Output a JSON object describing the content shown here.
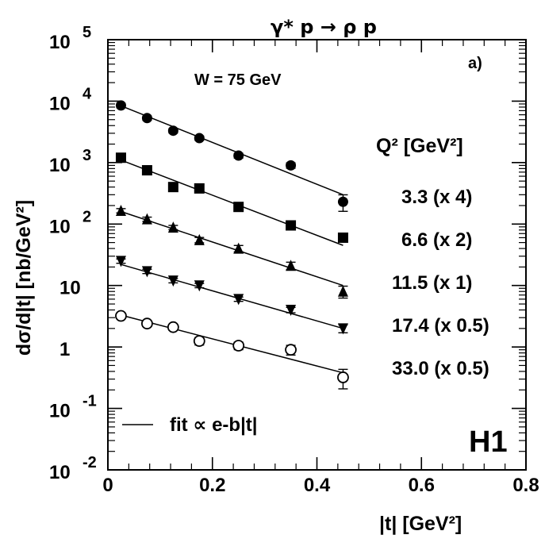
{
  "page": {
    "title": "γ* p → ρ p",
    "panel_label": "a)",
    "energy_label": "W = 75 GeV",
    "series_header": "Q² [GeV²]",
    "fit_label": "fit ∝ e-b|t|",
    "experiment_label": "H1"
  },
  "chart_data": {
    "type": "scatter",
    "title": "γ* p → ρ p",
    "xlabel": "|t| [GeV²]",
    "ylabel": "dσ/d|t| [nb/GeV²]",
    "xlim": [
      0,
      0.8
    ],
    "ylim": [
      0.01,
      100000
    ],
    "y_scale": "log",
    "grid": false,
    "legend": "top-right",
    "x_ticks": [
      0,
      0.2,
      0.4,
      0.6,
      0.8
    ],
    "y_ticks": [
      0.01,
      0.1,
      1,
      10,
      100,
      1000,
      10000,
      100000
    ],
    "annotations": [
      "a)",
      "W = 75 GeV",
      "H1",
      "fit ∝ e-b|t|"
    ],
    "series": [
      {
        "name": "3.3 (x 4)",
        "marker": "filled-circle",
        "x": [
          0.025,
          0.075,
          0.125,
          0.175,
          0.25,
          0.35,
          0.45
        ],
        "y": [
          8500,
          5300,
          3300,
          2500,
          1300,
          900,
          230
        ],
        "errors": [
          0.08,
          0.08,
          0.08,
          0.08,
          0.09,
          0.1,
          0.3
        ],
        "fit": {
          "x0": 0.025,
          "y0": 8400,
          "x1": 0.45,
          "y1": 300
        }
      },
      {
        "name": "6.6 (x 2)",
        "marker": "filled-square",
        "x": [
          0.025,
          0.075,
          0.125,
          0.175,
          0.25,
          0.35,
          0.45
        ],
        "y": [
          1200,
          750,
          400,
          380,
          190,
          95,
          60
        ],
        "errors": [
          0.08,
          0.08,
          0.08,
          0.08,
          0.09,
          0.1,
          0.12
        ],
        "fit": {
          "x0": 0.025,
          "y0": 1100,
          "x1": 0.45,
          "y1": 45
        }
      },
      {
        "name": "11.5 (x 1)",
        "marker": "filled-triangle-up",
        "x": [
          0.025,
          0.075,
          0.125,
          0.175,
          0.25,
          0.35,
          0.45
        ],
        "y": [
          165,
          120,
          88,
          55,
          40,
          21,
          8
        ],
        "errors": [
          0.08,
          0.08,
          0.08,
          0.1,
          0.12,
          0.14,
          0.22
        ],
        "fit": {
          "x0": 0.025,
          "y0": 160,
          "x1": 0.45,
          "y1": 10
        }
      },
      {
        "name": "17.4 (x 0.5)",
        "marker": "filled-triangle-down",
        "x": [
          0.025,
          0.075,
          0.125,
          0.175,
          0.25,
          0.35,
          0.45
        ],
        "y": [
          25,
          17,
          12,
          10,
          6,
          4,
          2
        ],
        "errors": [
          0.08,
          0.08,
          0.08,
          0.08,
          0.08,
          0.1,
          0.15
        ],
        "fit": {
          "x0": 0.025,
          "y0": 22,
          "x1": 0.45,
          "y1": 2
        }
      },
      {
        "name": "33.0 (x 0.5)",
        "marker": "open-circle",
        "x": [
          0.025,
          0.075,
          0.125,
          0.175,
          0.25,
          0.35,
          0.45
        ],
        "y": [
          3.2,
          2.4,
          2.1,
          1.25,
          1.05,
          0.9,
          0.32
        ],
        "errors": [
          0.1,
          0.1,
          0.1,
          0.14,
          0.14,
          0.18,
          0.35
        ],
        "fit": {
          "x0": 0.025,
          "y0": 3.3,
          "x1": 0.45,
          "y1": 0.38
        }
      }
    ]
  }
}
